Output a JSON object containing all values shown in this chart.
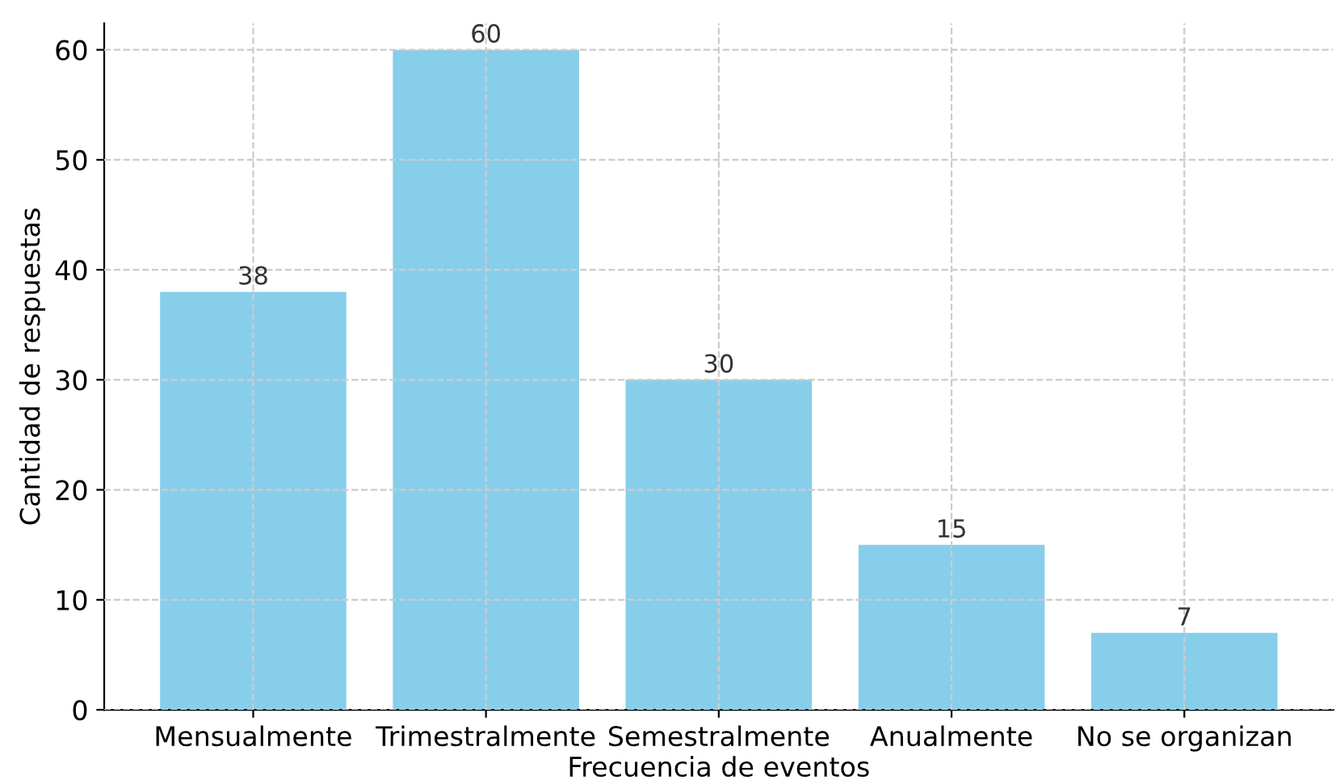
{
  "chart_data": {
    "type": "bar",
    "xlabel": "Frecuencia de eventos",
    "ylabel": "Cantidad de respuestas",
    "categories": [
      "Mensualmente",
      "Trimestralmente",
      "Semestralmente",
      "Anualmente",
      "No se organizan"
    ],
    "values": [
      38,
      60,
      30,
      15,
      7
    ],
    "color": "#87ceeb",
    "ylim": [
      0,
      62.4
    ],
    "yticks": [
      0,
      10,
      20,
      30,
      40,
      50,
      60
    ],
    "grid": true,
    "data_labels": true
  }
}
